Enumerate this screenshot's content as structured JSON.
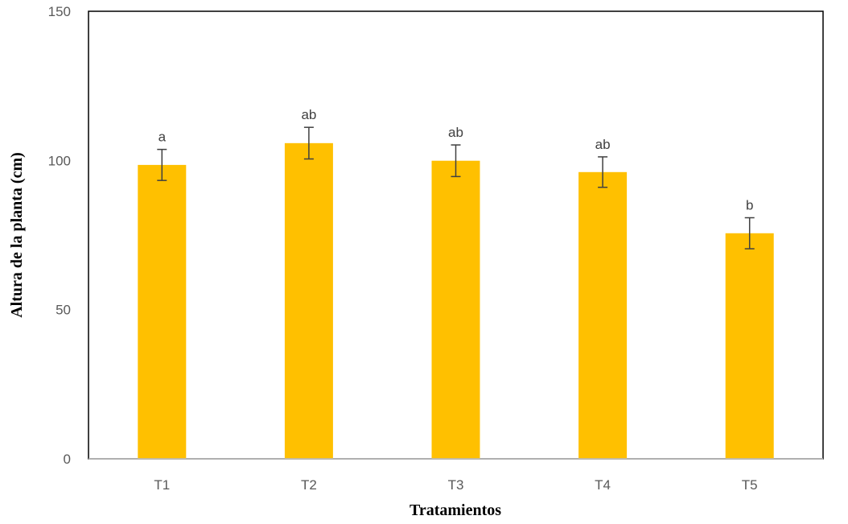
{
  "chart_data": {
    "type": "bar",
    "title": "",
    "xlabel": "Tratamientos",
    "ylabel": "Altura de la planta (cm)",
    "ylim": [
      0,
      150
    ],
    "yticks": [
      0,
      50,
      100,
      150
    ],
    "categories": [
      "T1",
      "T2",
      "T3",
      "T4",
      "T5"
    ],
    "series": [
      {
        "values": [
          98.5,
          105.8,
          99.9,
          96.1,
          75.6
        ],
        "error": [
          5.2,
          5.3,
          5.3,
          5.1,
          5.2
        ],
        "significance_letters": [
          "a",
          "ab",
          "ab",
          "ab",
          "b"
        ]
      }
    ],
    "grid": false,
    "legend": "none",
    "colors": {
      "bar": "#FFC000",
      "error_bar": "#404040",
      "axis": "#000000",
      "baseline": "#bfbfbf"
    }
  }
}
